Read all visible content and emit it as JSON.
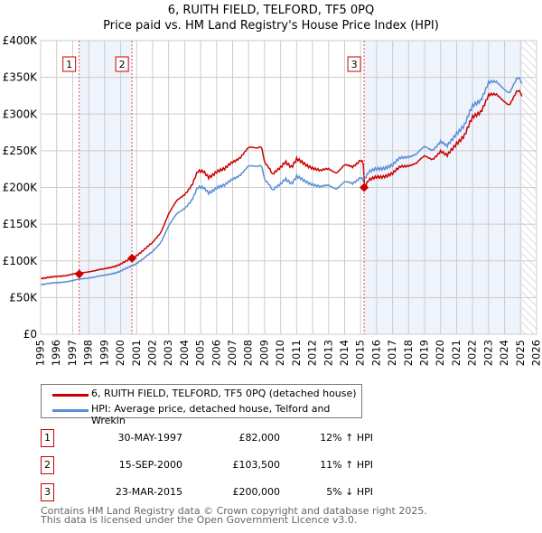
{
  "chart_data": {
    "type": "line",
    "title": "6, RUITH FIELD, TELFORD, TF5 0PQ",
    "subtitle": "Price paid vs. HM Land Registry's House Price Index (HPI)",
    "xlim": [
      1995,
      2026
    ],
    "ylim": [
      0,
      400000
    ],
    "x_ticks": [
      "1995",
      "1996",
      "1997",
      "1998",
      "1999",
      "2000",
      "2001",
      "2002",
      "2003",
      "2004",
      "2005",
      "2006",
      "2007",
      "2008",
      "2009",
      "2010",
      "2011",
      "2012",
      "2013",
      "2014",
      "2015",
      "2016",
      "2017",
      "2018",
      "2019",
      "2020",
      "2021",
      "2022",
      "2023",
      "2024",
      "2025",
      "2026"
    ],
    "y_ticks": [
      {
        "v": 0,
        "l": "£0"
      },
      {
        "v": 50000,
        "l": "£50K"
      },
      {
        "v": 100000,
        "l": "£100K"
      },
      {
        "v": 150000,
        "l": "£150K"
      },
      {
        "v": 200000,
        "l": "£200K"
      },
      {
        "v": 250000,
        "l": "£250K"
      },
      {
        "v": 300000,
        "l": "£300K"
      },
      {
        "v": 350000,
        "l": "£350K"
      },
      {
        "v": 400000,
        "l": "£400K"
      }
    ],
    "grid": true,
    "hpi_series": {
      "name": "HPI: Average price, detached house, Telford and Wrekin",
      "color": "#5b8fd4",
      "points": [
        [
          1995,
          68
        ],
        [
          1996,
          70
        ],
        [
          1997,
          73
        ],
        [
          1998,
          77
        ],
        [
          1999,
          80
        ],
        [
          2000,
          86
        ],
        [
          2000.7,
          93
        ],
        [
          2001,
          97
        ],
        [
          2002,
          112
        ],
        [
          2002.5,
          125
        ],
        [
          2003,
          148
        ],
        [
          2003.5,
          163
        ],
        [
          2004,
          172
        ],
        [
          2004.5,
          185
        ],
        [
          2004.8,
          199
        ],
        [
          2005.2,
          199
        ],
        [
          2005.5,
          193
        ],
        [
          2006,
          200
        ],
        [
          2006.5,
          202
        ],
        [
          2007,
          212
        ],
        [
          2007.5,
          218
        ],
        [
          2008,
          228
        ],
        [
          2008.5,
          229
        ],
        [
          2008.8,
          232
        ],
        [
          2009,
          212
        ],
        [
          2009.3,
          203
        ],
        [
          2009.5,
          195
        ],
        [
          2010,
          205
        ],
        [
          2010.3,
          213
        ],
        [
          2010.7,
          205
        ],
        [
          2011,
          214
        ],
        [
          2011.5,
          209
        ],
        [
          2012,
          205
        ],
        [
          2012.5,
          200
        ],
        [
          2013,
          203
        ],
        [
          2013.5,
          199
        ],
        [
          2014,
          207
        ],
        [
          2014.5,
          205
        ],
        [
          2015,
          215
        ],
        [
          2015.2,
          210
        ],
        [
          2015.5,
          220
        ],
        [
          2016,
          225
        ],
        [
          2017,
          230
        ],
        [
          2017.5,
          240
        ],
        [
          2018,
          243
        ],
        [
          2018.5,
          245
        ],
        [
          2019,
          255
        ],
        [
          2019.5,
          252
        ],
        [
          2020,
          262
        ],
        [
          2020.4,
          255
        ],
        [
          2021,
          275
        ],
        [
          2021.5,
          285
        ],
        [
          2022,
          310
        ],
        [
          2022.5,
          320
        ],
        [
          2023,
          343
        ],
        [
          2023.5,
          342
        ],
        [
          2024,
          335
        ],
        [
          2024.3,
          330
        ],
        [
          2024.8,
          348
        ],
        [
          2025,
          345
        ],
        [
          2025.1,
          337
        ]
      ]
    },
    "price_series": {
      "name": "6, RUITH FIELD, TELFORD, TF5 0PQ (detached house)",
      "color": "#cc0000",
      "ratio_before_2015_2": 1.11,
      "ratio_after": 0.95
    },
    "sales": [
      {
        "n": "1",
        "x": 1997.41,
        "date": "30-MAY-1997",
        "price": "£82,000",
        "value": 82000,
        "hpi": "12% ↑ HPI"
      },
      {
        "n": "2",
        "x": 2000.71,
        "date": "15-SEP-2000",
        "price": "£103,500",
        "value": 103500,
        "hpi": "11% ↑ HPI"
      },
      {
        "n": "3",
        "x": 2015.22,
        "date": "23-MAR-2015",
        "price": "£200,000",
        "value": 200000,
        "hpi": "5% ↓ HPI"
      }
    ],
    "shaded_ranges": [
      [
        1997.41,
        2000.71
      ],
      [
        2015.22,
        2025.1
      ]
    ],
    "forecast_hatch_from": 2025.1
  },
  "footer": [
    "Contains HM Land Registry data © Crown copyright and database right 2025.",
    "This data is licensed under the Open Government Licence v3.0."
  ]
}
